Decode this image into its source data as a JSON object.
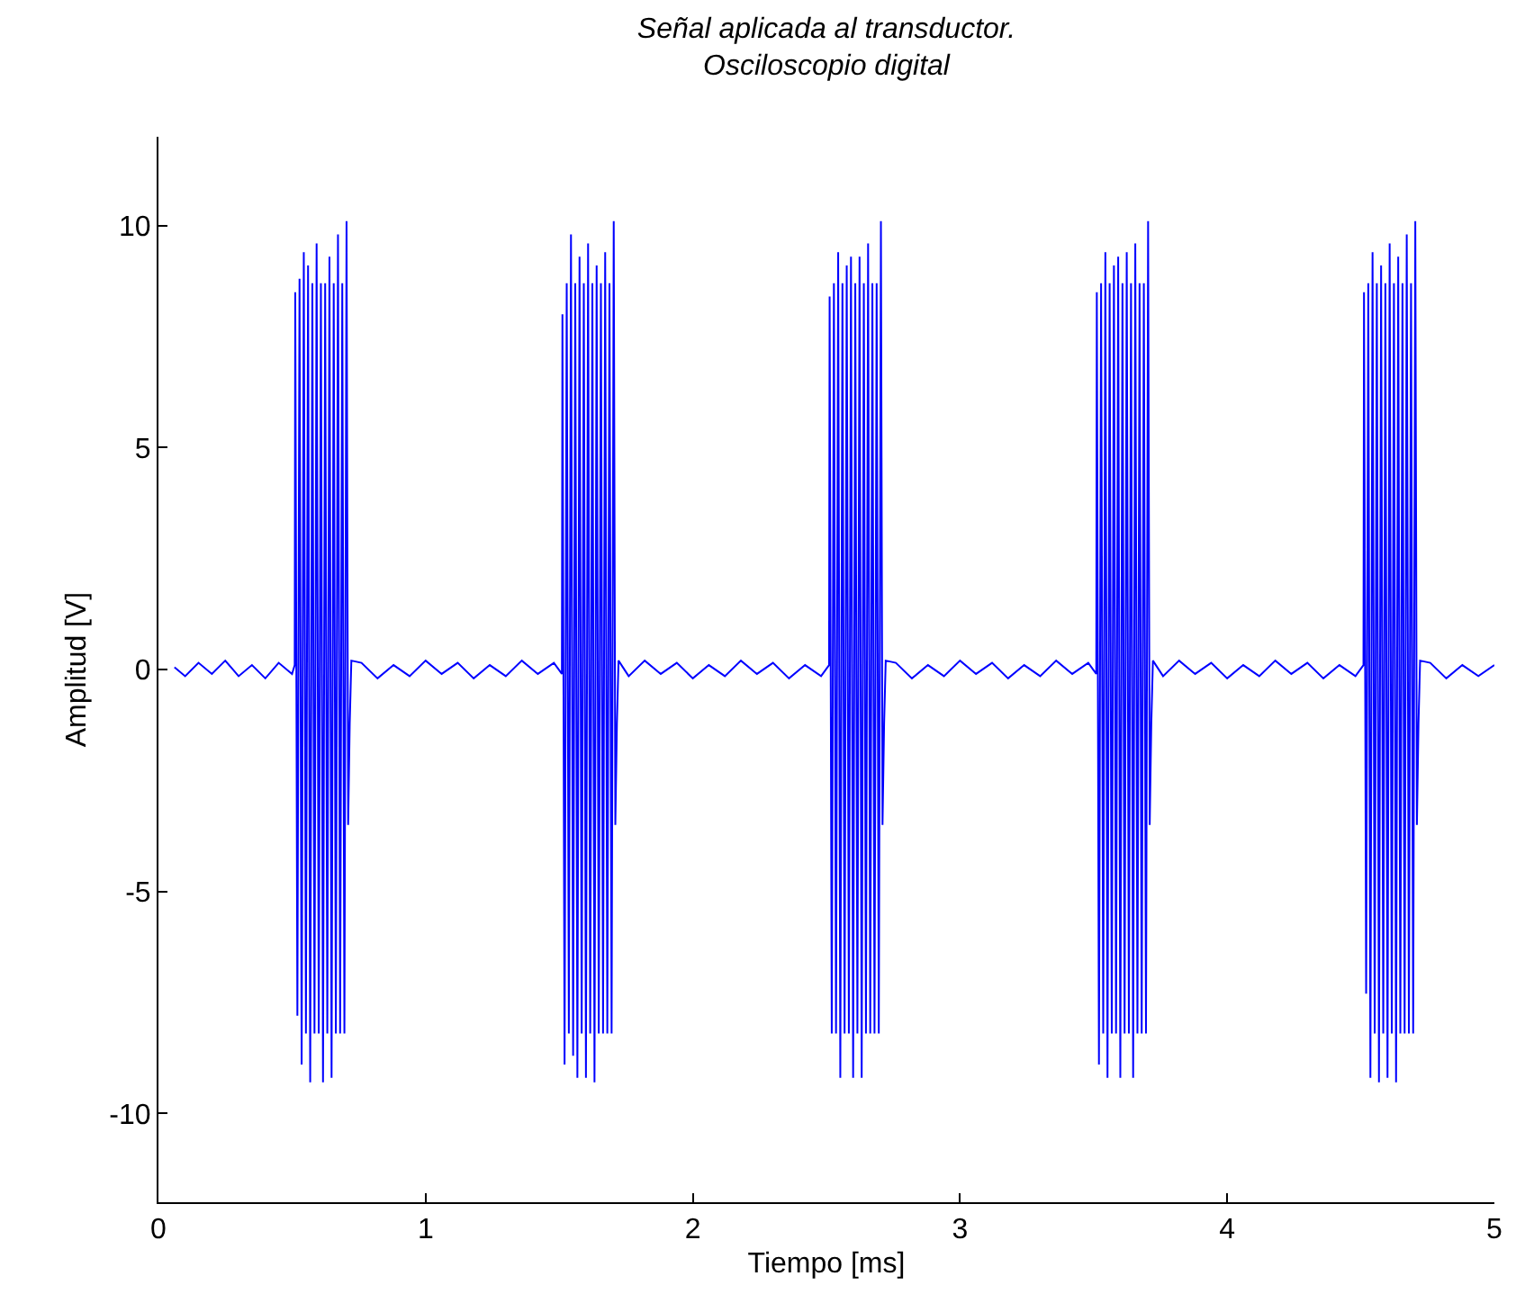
{
  "chart_data": {
    "type": "line",
    "title": "Señal aplicada al transductor.\nOsciloscopio digital",
    "xlabel": "Tiempo [ms]",
    "ylabel": "Amplitud [V]",
    "xlim": [
      0,
      5
    ],
    "xticks": [
      0,
      1,
      2,
      3,
      4,
      5
    ],
    "ylim": [
      -12,
      12
    ],
    "yticks": [
      -10,
      -5,
      0,
      5,
      10
    ],
    "marker": "none",
    "line_style": "solid",
    "series": [
      {
        "color": "#0000ff",
        "x": [
          0.06,
          0.1,
          0.15,
          0.2,
          0.25,
          0.3,
          0.35,
          0.4,
          0.45,
          0.5,
          0.51,
          0.512,
          0.52,
          0.528,
          0.536,
          0.544,
          0.552,
          0.56,
          0.568,
          0.576,
          0.584,
          0.592,
          0.6,
          0.608,
          0.616,
          0.624,
          0.632,
          0.64,
          0.648,
          0.656,
          0.664,
          0.672,
          0.68,
          0.688,
          0.696,
          0.704,
          0.71,
          0.716,
          0.722,
          0.76,
          0.82,
          0.88,
          0.94,
          1.0,
          1.06,
          1.12,
          1.18,
          1.24,
          1.3,
          1.36,
          1.42,
          1.48,
          1.51,
          1.512,
          1.52,
          1.528,
          1.536,
          1.544,
          1.552,
          1.56,
          1.568,
          1.576,
          1.584,
          1.592,
          1.6,
          1.608,
          1.616,
          1.624,
          1.632,
          1.64,
          1.648,
          1.656,
          1.664,
          1.672,
          1.68,
          1.688,
          1.696,
          1.704,
          1.71,
          1.716,
          1.722,
          1.76,
          1.82,
          1.88,
          1.94,
          2.0,
          2.06,
          2.12,
          2.18,
          2.24,
          2.3,
          2.36,
          2.42,
          2.48,
          2.51,
          2.512,
          2.52,
          2.528,
          2.536,
          2.544,
          2.552,
          2.56,
          2.568,
          2.576,
          2.584,
          2.592,
          2.6,
          2.608,
          2.616,
          2.624,
          2.632,
          2.64,
          2.648,
          2.656,
          2.664,
          2.672,
          2.68,
          2.688,
          2.696,
          2.704,
          2.71,
          2.716,
          2.722,
          2.76,
          2.82,
          2.88,
          2.94,
          3.0,
          3.06,
          3.12,
          3.18,
          3.24,
          3.3,
          3.36,
          3.42,
          3.48,
          3.51,
          3.512,
          3.52,
          3.528,
          3.536,
          3.544,
          3.552,
          3.56,
          3.568,
          3.576,
          3.584,
          3.592,
          3.6,
          3.608,
          3.616,
          3.624,
          3.632,
          3.64,
          3.648,
          3.656,
          3.664,
          3.672,
          3.68,
          3.688,
          3.696,
          3.704,
          3.71,
          3.716,
          3.722,
          3.76,
          3.82,
          3.88,
          3.94,
          4.0,
          4.06,
          4.12,
          4.18,
          4.24,
          4.3,
          4.36,
          4.42,
          4.48,
          4.51,
          4.512,
          4.52,
          4.528,
          4.536,
          4.544,
          4.552,
          4.56,
          4.568,
          4.576,
          4.584,
          4.592,
          4.6,
          4.608,
          4.616,
          4.624,
          4.632,
          4.64,
          4.648,
          4.656,
          4.664,
          4.672,
          4.68,
          4.688,
          4.696,
          4.704,
          4.71,
          4.716,
          4.722,
          4.76,
          4.82,
          4.88,
          4.94,
          5.0
        ],
        "values": [
          0.05,
          -0.15,
          0.15,
          -0.1,
          0.2,
          -0.15,
          0.1,
          -0.2,
          0.15,
          -0.1,
          0.1,
          8.5,
          -7.8,
          8.8,
          -8.9,
          9.4,
          -8.2,
          9.1,
          -9.3,
          8.7,
          -8.2,
          9.6,
          -8.2,
          8.7,
          -9.3,
          8.7,
          -8.2,
          9.3,
          -9.2,
          8.7,
          -8.2,
          9.8,
          -8.2,
          8.7,
          -8.2,
          10.1,
          -3.5,
          -1.2,
          0.2,
          0.15,
          -0.2,
          0.1,
          -0.15,
          0.2,
          -0.1,
          0.15,
          -0.2,
          0.1,
          -0.15,
          0.2,
          -0.1,
          0.15,
          -0.1,
          8.0,
          -8.9,
          8.7,
          -8.2,
          9.8,
          -8.7,
          8.7,
          -9.2,
          9.3,
          -8.2,
          8.7,
          -9.2,
          9.6,
          -8.2,
          8.7,
          -9.3,
          9.1,
          -8.2,
          8.7,
          -8.2,
          9.4,
          -8.2,
          8.7,
          -8.2,
          10.1,
          -3.5,
          -1.2,
          0.2,
          -0.15,
          0.2,
          -0.1,
          0.15,
          -0.2,
          0.1,
          -0.15,
          0.2,
          -0.1,
          0.15,
          -0.2,
          0.1,
          -0.15,
          0.1,
          8.4,
          -8.2,
          8.7,
          -8.2,
          9.4,
          -9.2,
          8.7,
          -8.2,
          9.1,
          -8.2,
          9.3,
          -9.2,
          8.7,
          -8.2,
          9.3,
          -9.2,
          8.7,
          -8.2,
          9.6,
          -8.2,
          8.7,
          -8.2,
          8.7,
          -8.2,
          10.1,
          -3.5,
          -1.2,
          0.2,
          0.15,
          -0.2,
          0.1,
          -0.15,
          0.2,
          -0.1,
          0.15,
          -0.2,
          0.1,
          -0.15,
          0.2,
          -0.1,
          0.15,
          -0.1,
          8.5,
          -8.9,
          8.7,
          -8.2,
          9.4,
          -9.2,
          8.7,
          -8.2,
          9.1,
          -8.2,
          9.3,
          -9.2,
          8.7,
          -8.2,
          9.4,
          -8.2,
          8.7,
          -9.2,
          9.6,
          -8.2,
          8.7,
          -8.2,
          8.7,
          -8.2,
          10.1,
          -3.5,
          -1.2,
          0.2,
          -0.15,
          0.2,
          -0.1,
          0.15,
          -0.2,
          0.1,
          -0.15,
          0.2,
          -0.1,
          0.15,
          -0.2,
          0.1,
          -0.15,
          0.1,
          8.5,
          -7.3,
          8.7,
          -9.2,
          9.4,
          -8.2,
          8.7,
          -9.3,
          9.1,
          -8.2,
          8.7,
          -9.2,
          9.6,
          -8.2,
          8.7,
          -9.3,
          9.3,
          -8.2,
          8.7,
          -8.2,
          9.8,
          -8.2,
          8.7,
          -8.2,
          10.1,
          -3.5,
          -1.2,
          0.2,
          0.15,
          -0.2,
          0.1,
          -0.15,
          0.1
        ]
      }
    ]
  }
}
